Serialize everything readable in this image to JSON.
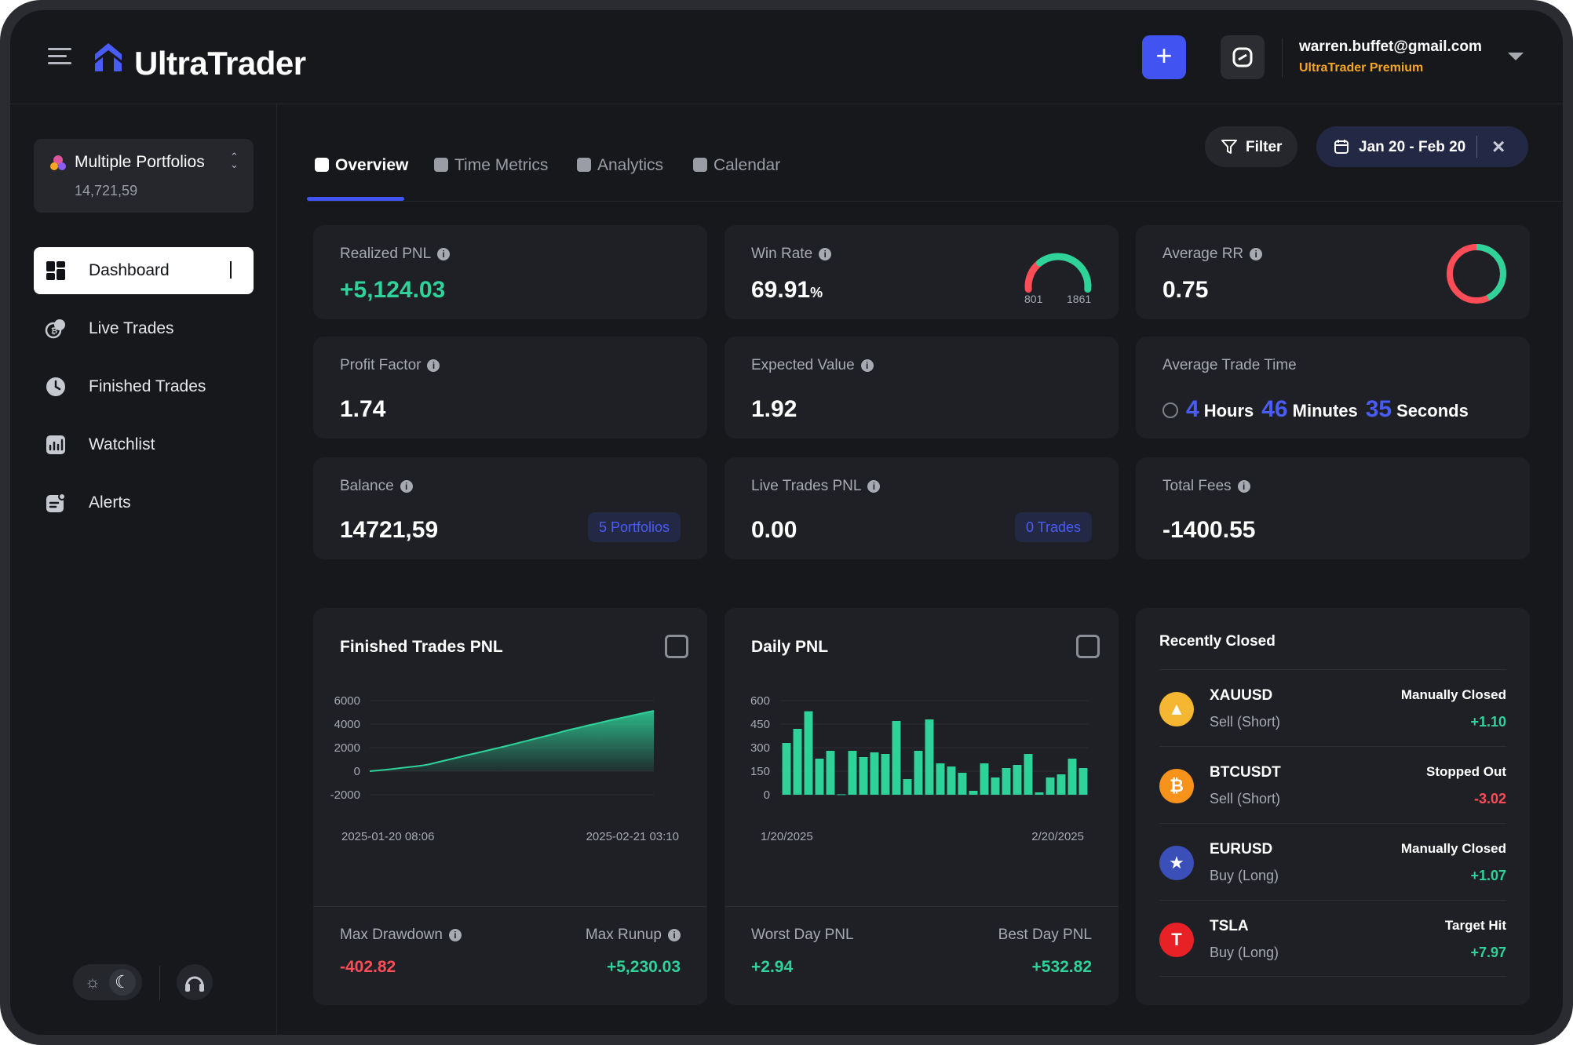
{
  "app": {
    "name": "UltraTrader"
  },
  "user": {
    "email": "warren.buffet@gmail.com",
    "plan": "UltraTrader Premium"
  },
  "portfolio": {
    "title": "Multiple Portfolios",
    "value": "14,721,59"
  },
  "sidebar": {
    "items": [
      {
        "label": "Dashboard",
        "icon": "dashboard-icon",
        "active": true
      },
      {
        "label": "Live Trades",
        "icon": "live-trades-icon"
      },
      {
        "label": "Finished Trades",
        "icon": "clock-icon"
      },
      {
        "label": "Watchlist",
        "icon": "watchlist-chart-icon"
      },
      {
        "label": "Alerts",
        "icon": "alerts-icon"
      }
    ]
  },
  "tabs": [
    {
      "label": "Overview",
      "active": true
    },
    {
      "label": "Time Metrics"
    },
    {
      "label": "Analytics"
    },
    {
      "label": "Calendar"
    }
  ],
  "filter": {
    "label": "Filter"
  },
  "date_range": {
    "label": "Jan 20 - Feb 20"
  },
  "metrics": {
    "realized_pnl": {
      "label": "Realized PNL",
      "value": "+5,124.03"
    },
    "win_rate": {
      "label": "Win Rate",
      "value": "69.91",
      "unit": "%",
      "losses": "801",
      "wins": "1861"
    },
    "average_rr": {
      "label": "Average RR",
      "value": "0.75"
    },
    "profit_factor": {
      "label": "Profit Factor",
      "value": "1.74"
    },
    "expected_value": {
      "label": "Expected Value",
      "value": "1.92"
    },
    "avg_trade_time": {
      "label": "Average Trade Time",
      "hours": "4",
      "hours_label": "Hours",
      "minutes": "46",
      "minutes_label": "Minutes",
      "seconds": "35",
      "seconds_label": "Seconds"
    },
    "balance": {
      "label": "Balance",
      "value": "14721,59",
      "badge": "5 Portfolios"
    },
    "live_trades_pnl": {
      "label": "Live Trades PNL",
      "value": "0.00",
      "badge": "0 Trades"
    },
    "total_fees": {
      "label": "Total Fees",
      "value": "-1400.55"
    }
  },
  "finished_trades_chart": {
    "title": "Finished Trades PNL",
    "x_start": "2025-01-20 08:06",
    "x_end": "2025-02-21 03:10",
    "max_drawdown_label": "Max Drawdown",
    "max_drawdown": "-402.82",
    "max_runup_label": "Max Runup",
    "max_runup": "+5,230.03"
  },
  "daily_pnl_chart": {
    "title": "Daily PNL",
    "x_start": "1/20/2025",
    "x_end": "2/20/2025",
    "worst_label": "Worst Day PNL",
    "worst": "+2.94",
    "best_label": "Best Day PNL",
    "best": "+532.82"
  },
  "chart_data": [
    {
      "type": "area",
      "title": "Finished Trades PNL",
      "x_labels": [
        "2025-01-20 08:06",
        "2025-02-21 03:10"
      ],
      "yticks": [
        6000,
        4000,
        2000,
        0,
        -2000
      ],
      "ylim": [
        -2000,
        6000
      ],
      "values": [
        0,
        60,
        120,
        180,
        260,
        330,
        400,
        480,
        590,
        750,
        900,
        1050,
        1200,
        1360,
        1500,
        1650,
        1800,
        1950,
        2100,
        2260,
        2420,
        2580,
        2740,
        2900,
        3060,
        3220,
        3400,
        3560,
        3700,
        3860,
        4000,
        4150,
        4300,
        4440,
        4580,
        4720,
        4860,
        5000,
        5124
      ],
      "color": "#2fd39a",
      "grid": true
    },
    {
      "type": "bar",
      "title": "Daily PNL",
      "x_labels": [
        "1/20/2025",
        "2/20/2025"
      ],
      "yticks": [
        600,
        450,
        300,
        150,
        0
      ],
      "ylim": [
        0,
        660
      ],
      "values": [
        330,
        420,
        532,
        230,
        280,
        3,
        280,
        240,
        270,
        260,
        470,
        100,
        280,
        480,
        200,
        180,
        140,
        25,
        200,
        110,
        170,
        190,
        260,
        15,
        110,
        130,
        230,
        170
      ],
      "color": "#2fd39a",
      "grid": true
    }
  ],
  "recently_closed": {
    "title": "Recently Closed",
    "items": [
      {
        "symbol": "XAUUSD",
        "side": "Sell (Short)",
        "status": "Manually Closed",
        "pnl": "+1.10",
        "icon": "gold-icon",
        "color": "#f5b731",
        "glyph": "▲",
        "positive": true
      },
      {
        "symbol": "BTCUSDT",
        "side": "Sell (Short)",
        "status": "Stopped Out",
        "pnl": "-3.02",
        "icon": "bitcoin-icon",
        "color": "#f7931a",
        "glyph": "₿",
        "positive": false
      },
      {
        "symbol": "EURUSD",
        "side": "Buy (Long)",
        "status": "Manually Closed",
        "pnl": "+1.07",
        "icon": "eur-usd-flag-icon",
        "color": "#3b4fb8",
        "glyph": "★",
        "positive": true
      },
      {
        "symbol": "TSLA",
        "side": "Buy (Long)",
        "status": "Target Hit",
        "pnl": "+7.97",
        "icon": "tesla-icon",
        "color": "#e82127",
        "glyph": "T",
        "positive": true
      }
    ]
  }
}
